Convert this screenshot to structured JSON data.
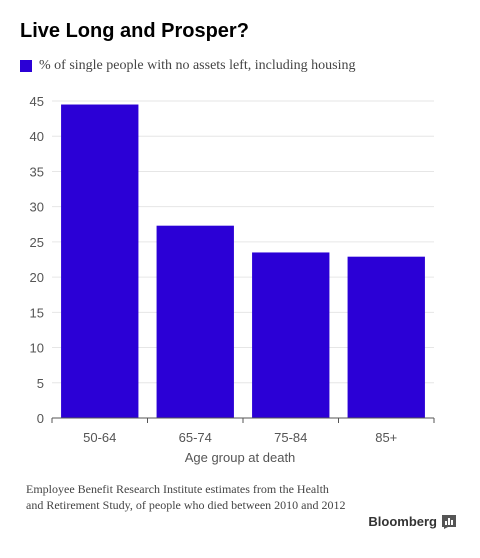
{
  "colors": {
    "bar": "#2b00d6",
    "grid": "#e6e6e6",
    "axis": "#555555",
    "tick_text": "#555555"
  },
  "legend": {
    "label": "% of single people with no assets left, including housing"
  },
  "source": {
    "line1": "Employee Benefit Research Institute estimates from the Health",
    "line2": "and Retirement Study, of people who died between 2010 and 2012"
  },
  "brand": {
    "name": "Bloomberg",
    "icon": "bloomberg-chart-icon"
  },
  "chart_data": {
    "type": "bar",
    "title": "Live Long and Prosper?",
    "xlabel": "Age group at death",
    "ylabel": "",
    "categories": [
      "50-64",
      "65-74",
      "75-84",
      "85+"
    ],
    "series": [
      {
        "name": "% of single people with no assets left, including housing",
        "values": [
          44.5,
          27.3,
          23.5,
          22.9
        ]
      }
    ],
    "ylim": [
      0,
      45
    ],
    "yticks": [
      0,
      5,
      10,
      15,
      20,
      25,
      30,
      35,
      40,
      45
    ],
    "grid": true,
    "legend_position": "top-left"
  }
}
